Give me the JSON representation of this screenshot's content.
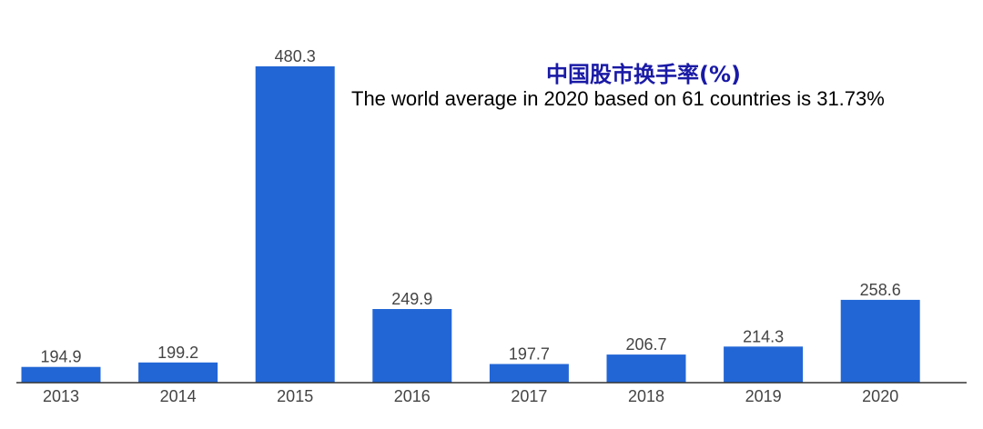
{
  "chart_data": {
    "type": "bar",
    "title": "中国股市换手率(%)",
    "subtitle": "The world average in 2020 based on 61 countries is 31.73%",
    "categories": [
      "2013",
      "2014",
      "2015",
      "2016",
      "2017",
      "2018",
      "2019",
      "2020"
    ],
    "values": [
      194.9,
      199.2,
      480.3,
      249.9,
      197.7,
      206.7,
      214.3,
      258.6
    ],
    "value_labels": [
      "194.9",
      "199.2",
      "480.3",
      "249.9",
      "197.7",
      "206.7",
      "214.3",
      "258.6"
    ],
    "xlabel": "",
    "ylabel": "",
    "ylim": [
      180,
      480.3
    ],
    "grid": false,
    "bar_color": "#2266d6",
    "axis_color": "#333333",
    "label_color": "#444444",
    "title_color": "#1a1aa6"
  }
}
